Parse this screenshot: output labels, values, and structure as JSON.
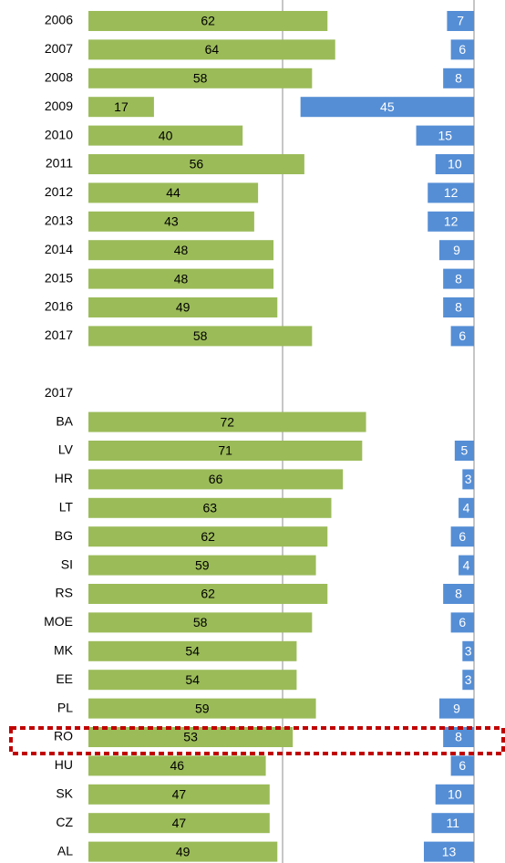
{
  "chart_data": {
    "type": "bar",
    "orientation": "horizontal",
    "categories": [
      "2006",
      "2007",
      "2008",
      "2009",
      "2010",
      "2011",
      "2012",
      "2013",
      "2014",
      "2015",
      "2016",
      "2017",
      null,
      "2017",
      "BA",
      "LV",
      "HR",
      "LT",
      "BG",
      "SI",
      "RS",
      "MOE",
      "MK",
      "EE",
      "PL",
      "RO",
      "HU",
      "SK",
      "CZ",
      "AL"
    ],
    "series": [
      {
        "color": "#9bbb59",
        "values": [
          62,
          64,
          58,
          17,
          40,
          56,
          44,
          43,
          48,
          48,
          49,
          58,
          null,
          null,
          72,
          71,
          66,
          63,
          62,
          59,
          62,
          58,
          54,
          54,
          59,
          53,
          46,
          47,
          47,
          49
        ]
      },
      {
        "color": "#558ed5",
        "values": [
          7,
          6,
          8,
          45,
          15,
          10,
          12,
          12,
          9,
          8,
          8,
          6,
          null,
          null,
          null,
          5,
          3,
          4,
          6,
          4,
          8,
          6,
          3,
          3,
          9,
          8,
          6,
          10,
          11,
          13
        ]
      }
    ],
    "xlim": [
      0,
      100
    ]
  }
}
